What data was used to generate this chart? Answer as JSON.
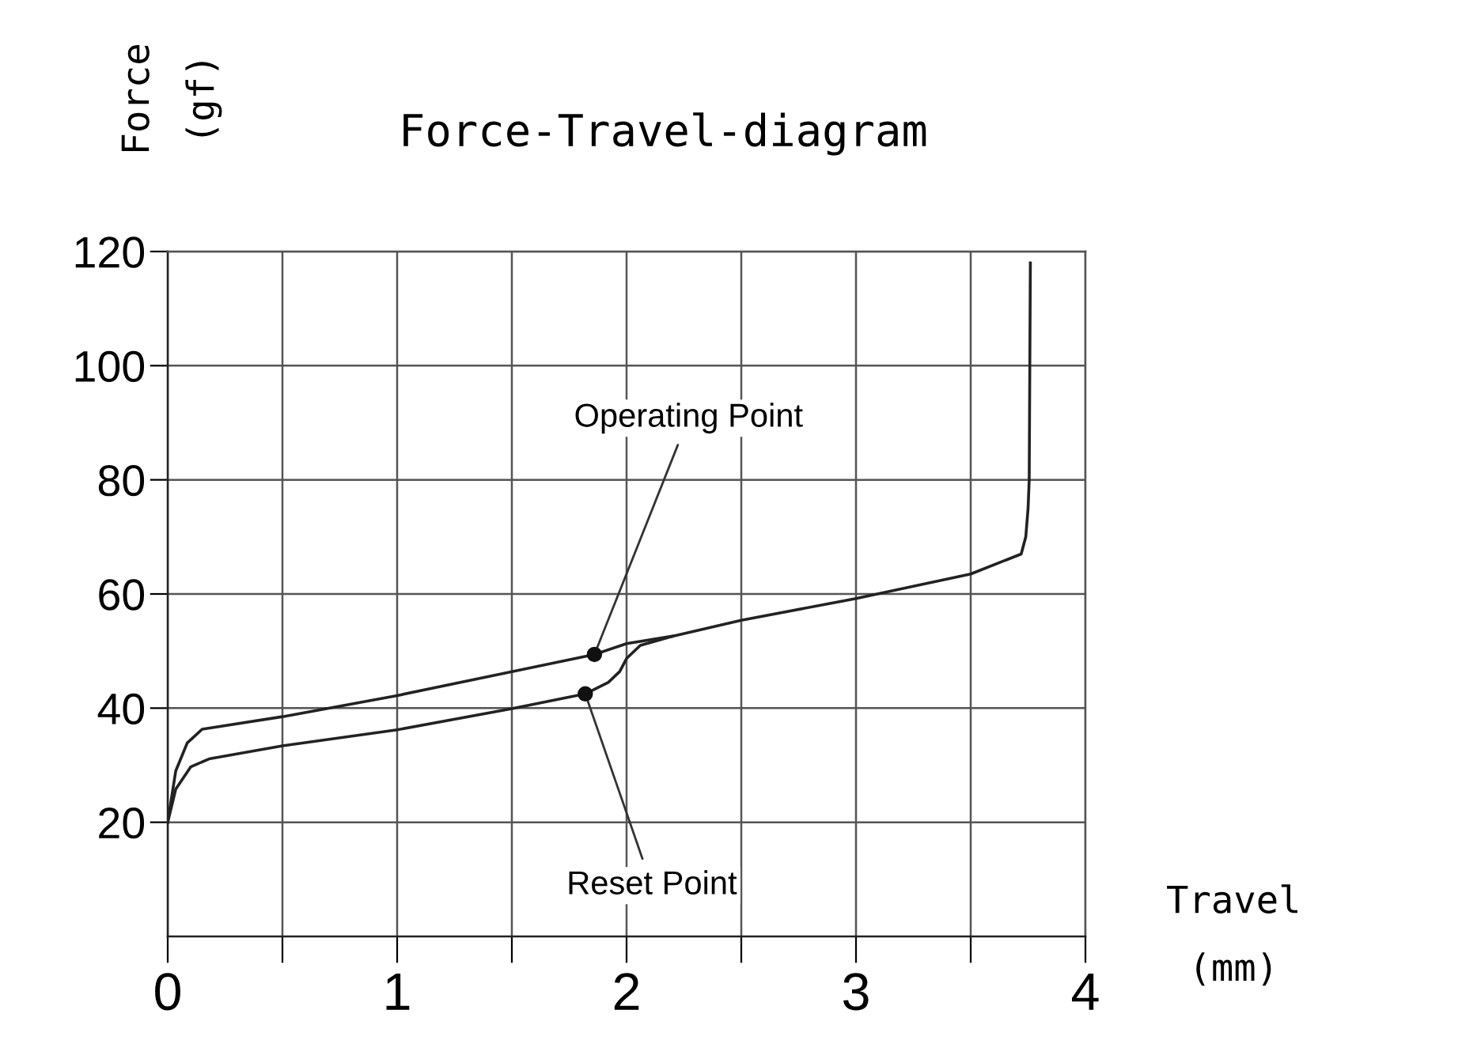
{
  "chart_data": {
    "type": "line",
    "title": "Force-Travel-diagram",
    "xlabel": "Travel\n(mm)",
    "ylabel": "Force\n(gf)",
    "series": [
      {
        "color": "#222222",
        "x": [
          0,
          0.035,
          0.085,
          0.15,
          0.5,
          1.0,
          1.5,
          1.86,
          2.0,
          2.2,
          2.5,
          3.0,
          3.5,
          3.72,
          3.74,
          3.75,
          3.755,
          3.76
        ],
        "values": [
          20,
          29,
          33.9,
          36.3,
          38.5,
          42.2,
          46.4,
          49.4,
          51.3,
          52.6,
          55.4,
          59.2,
          63.5,
          67,
          70,
          75,
          80,
          118
        ]
      },
      {
        "color": "#222222",
        "x": [
          0,
          0.035,
          0.1,
          0.18,
          0.5,
          1.0,
          1.5,
          1.82,
          1.92,
          1.97,
          2.0,
          2.06,
          2.2
        ],
        "values": [
          20,
          25.8,
          29.7,
          31.1,
          33.4,
          36.2,
          39.9,
          42.5,
          44.5,
          46.4,
          48.7,
          51,
          52.6
        ]
      }
    ],
    "xlim": [
      0,
      4
    ],
    "ylim": [
      0,
      120
    ],
    "xticks": [
      0,
      {
        "value": 0.5,
        "label": null
      },
      1,
      {
        "value": 1.5,
        "label": null
      },
      2,
      {
        "value": 2.5,
        "label": null
      },
      3,
      {
        "value": 3.5,
        "label": null
      },
      4
    ],
    "yticks": [
      20,
      40,
      60,
      80,
      100,
      120
    ],
    "grid": true,
    "legend": false,
    "marker": "none",
    "line_style": "solid",
    "annotations": [
      {
        "text": "Operating Point",
        "x": 1.86,
        "y": 49.4
      },
      {
        "text": "Reset Point",
        "x": 1.82,
        "y": 42.5
      }
    ]
  }
}
